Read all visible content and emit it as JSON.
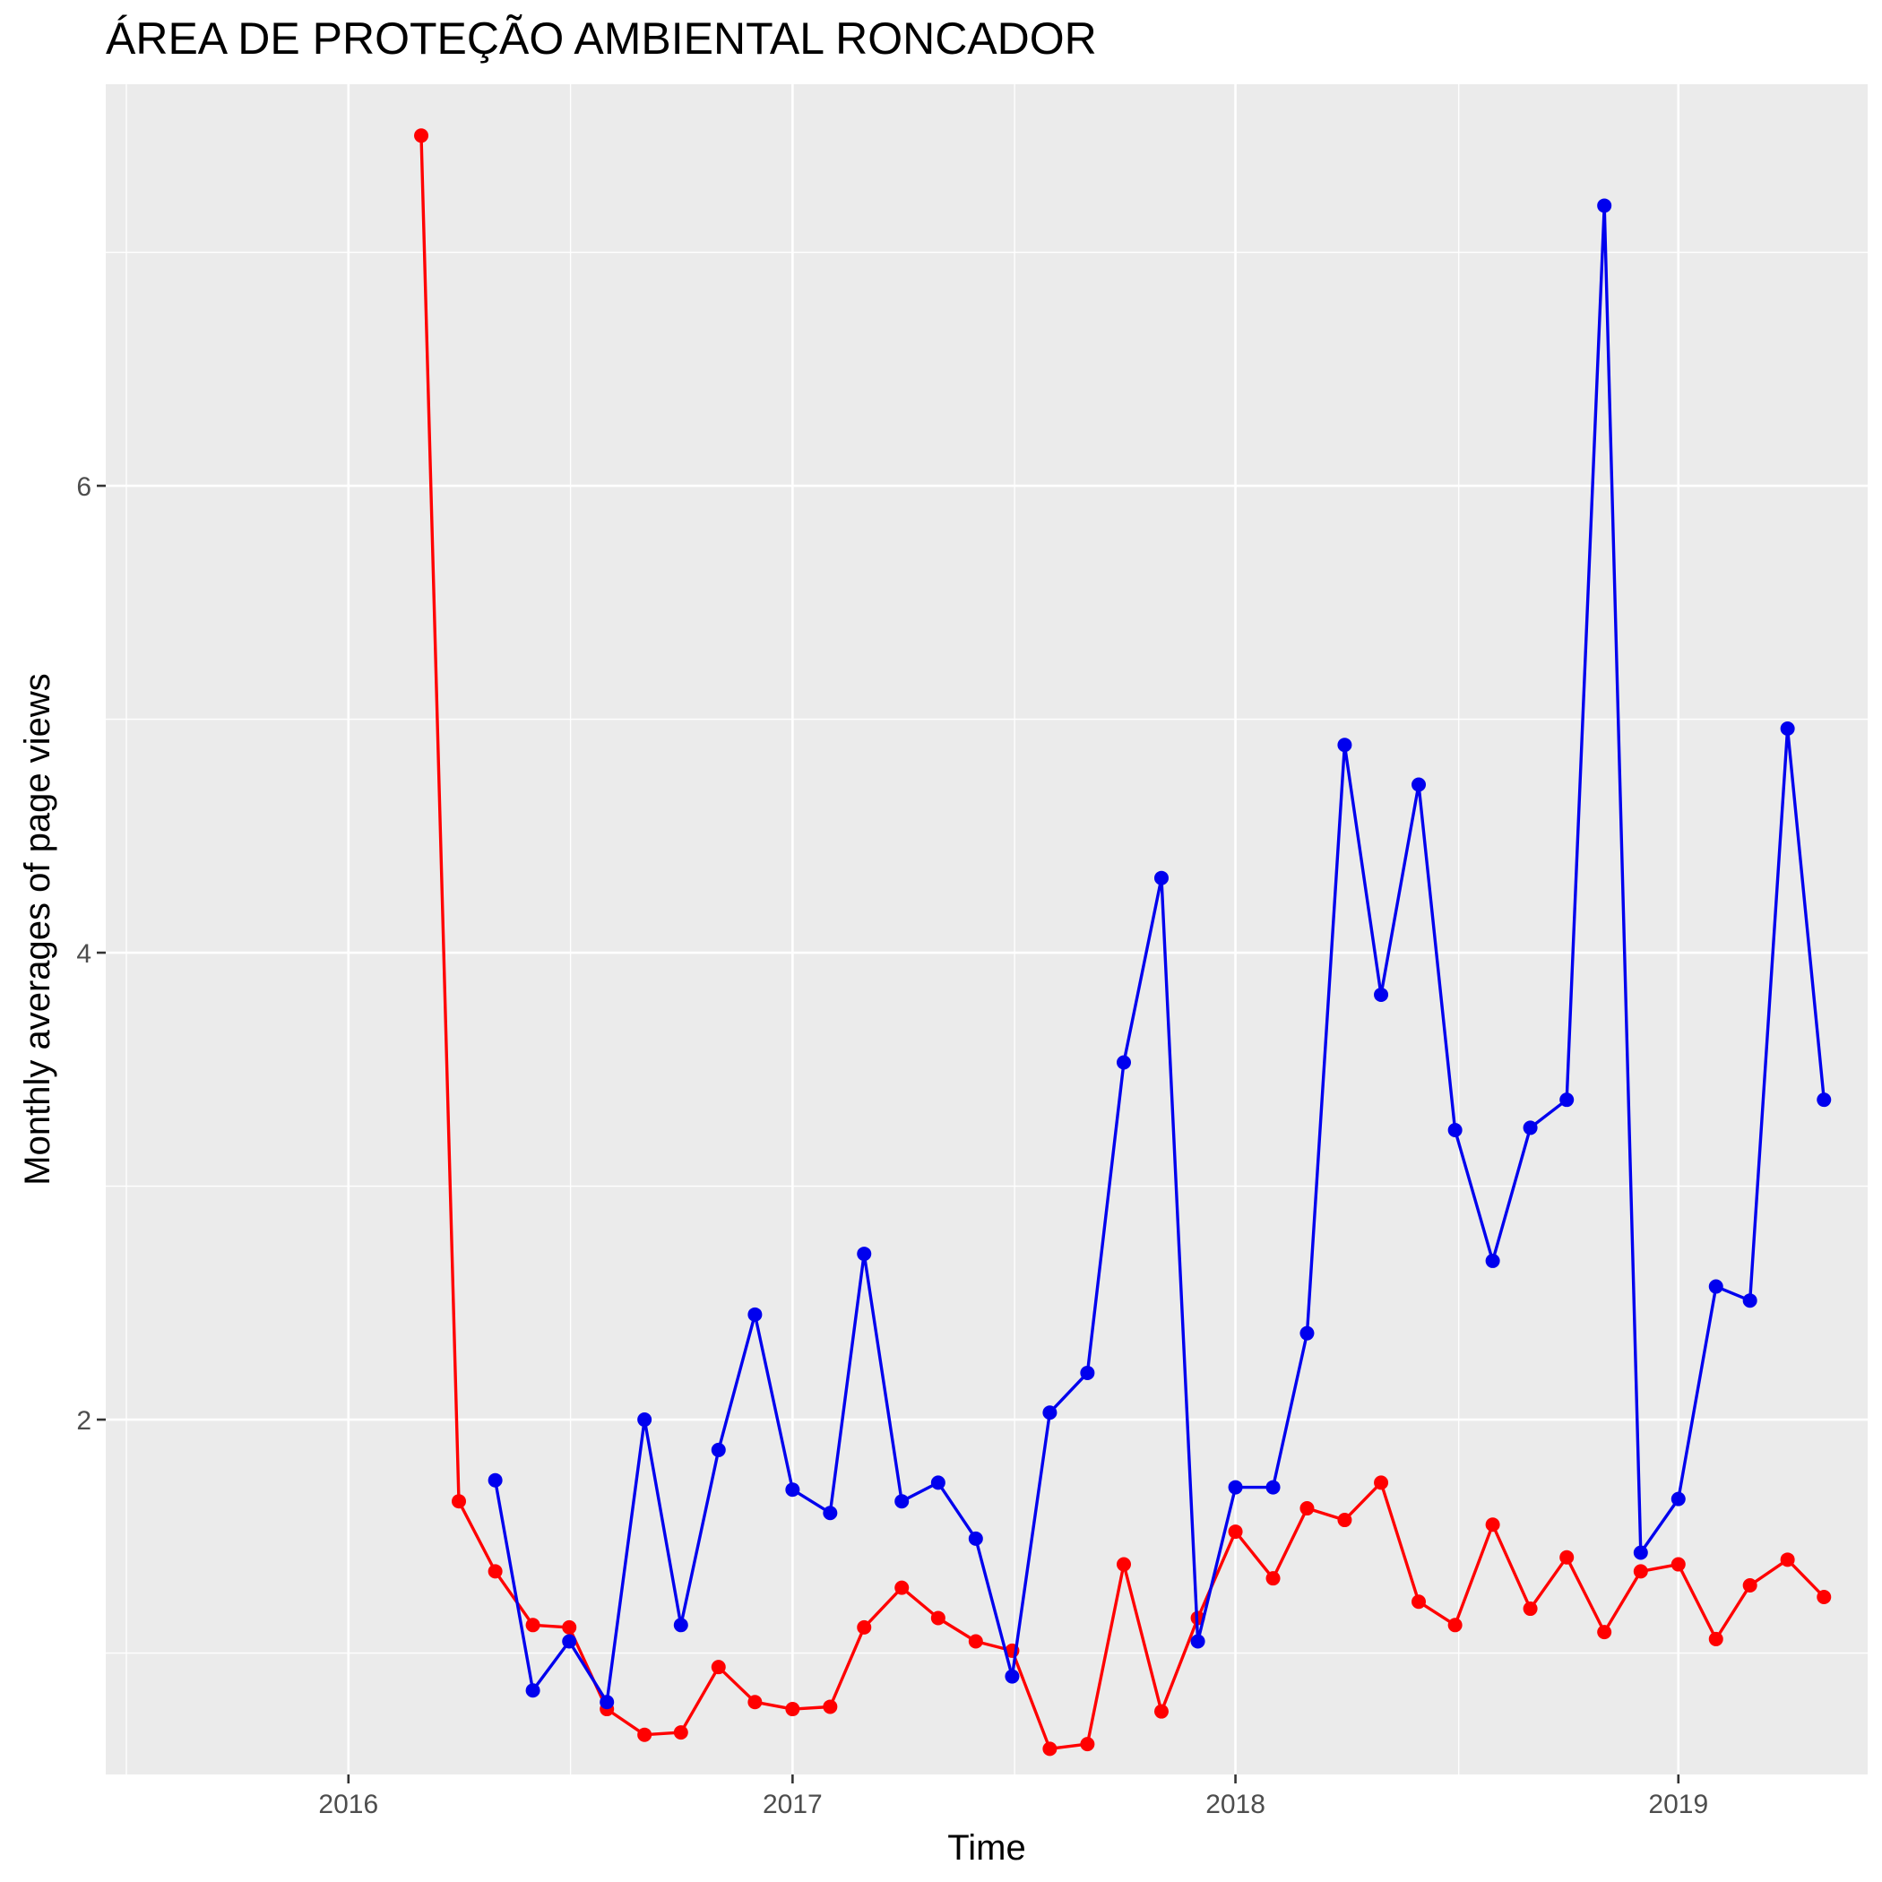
{
  "chart_data": {
    "type": "line",
    "title": "ÁREA DE PROTEÇÃO AMBIENTAL RONCADOR",
    "xlabel": "Time",
    "ylabel": "Monthly averages of page views",
    "x_ticks": [
      "2016",
      "2017",
      "2018",
      "2019"
    ],
    "y_ticks": [
      "2",
      "4",
      "6"
    ],
    "xlim": [
      "2015-06-15",
      "2019-06-06"
    ],
    "ylim": [
      0.48,
      7.72
    ],
    "grid": true,
    "legend": "none",
    "series": [
      {
        "color": "#FF0000",
        "points": [
          [
            "2016-03",
            7.5
          ],
          [
            "2016-04",
            1.65
          ],
          [
            "2016-05",
            1.35
          ],
          [
            "2016-06",
            1.12
          ],
          [
            "2016-07",
            1.11
          ],
          [
            "2016-08",
            0.76
          ],
          [
            "2016-09",
            0.65
          ],
          [
            "2016-10",
            0.66
          ],
          [
            "2016-11",
            0.94
          ],
          [
            "2016-12",
            0.79
          ],
          [
            "2017-01",
            0.76
          ],
          [
            "2017-02",
            0.77
          ],
          [
            "2017-03",
            1.11
          ],
          [
            "2017-04",
            1.28
          ],
          [
            "2017-05",
            1.15
          ],
          [
            "2017-06",
            1.05
          ],
          [
            "2017-07",
            1.01
          ],
          [
            "2017-08",
            0.59
          ],
          [
            "2017-09",
            0.61
          ],
          [
            "2017-10",
            1.38
          ],
          [
            "2017-11",
            0.75
          ],
          [
            "2017-12",
            1.15
          ],
          [
            "2018-01",
            1.52
          ],
          [
            "2018-02",
            1.32
          ],
          [
            "2018-03",
            1.62
          ],
          [
            "2018-04",
            1.57
          ],
          [
            "2018-05",
            1.73
          ],
          [
            "2018-06",
            1.22
          ],
          [
            "2018-07",
            1.12
          ],
          [
            "2018-08",
            1.55
          ],
          [
            "2018-09",
            1.19
          ],
          [
            "2018-10",
            1.41
          ],
          [
            "2018-11",
            1.09
          ],
          [
            "2018-12",
            1.35
          ],
          [
            "2019-01",
            1.38
          ],
          [
            "2019-02",
            1.06
          ],
          [
            "2019-03",
            1.29
          ],
          [
            "2019-04",
            1.4
          ],
          [
            "2019-05",
            1.24
          ]
        ]
      },
      {
        "color": "#0000EE",
        "points": [
          [
            "2016-05",
            1.74
          ],
          [
            "2016-06",
            0.84
          ],
          [
            "2016-07",
            1.05
          ],
          [
            "2016-08",
            0.79
          ],
          [
            "2016-09",
            2.0
          ],
          [
            "2016-10",
            1.12
          ],
          [
            "2016-11",
            1.87
          ],
          [
            "2016-12",
            2.45
          ],
          [
            "2017-01",
            1.7
          ],
          [
            "2017-02",
            1.6
          ],
          [
            "2017-03",
            2.71
          ],
          [
            "2017-04",
            1.65
          ],
          [
            "2017-05",
            1.73
          ],
          [
            "2017-06",
            1.49
          ],
          [
            "2017-07",
            0.9
          ],
          [
            "2017-08",
            2.03
          ],
          [
            "2017-09",
            2.2
          ],
          [
            "2017-10",
            3.53
          ],
          [
            "2017-11",
            4.32
          ],
          [
            "2017-12",
            1.05
          ],
          [
            "2018-01",
            1.71
          ],
          [
            "2018-02",
            1.71
          ],
          [
            "2018-03",
            2.37
          ],
          [
            "2018-04",
            4.89
          ],
          [
            "2018-05",
            3.82
          ],
          [
            "2018-06",
            4.72
          ],
          [
            "2018-07",
            3.24
          ],
          [
            "2018-08",
            2.68
          ],
          [
            "2018-09",
            3.25
          ],
          [
            "2018-10",
            3.37
          ],
          [
            "2018-11",
            7.2
          ],
          [
            "2018-12",
            1.43
          ],
          [
            "2019-01",
            1.66
          ],
          [
            "2019-02",
            2.57
          ],
          [
            "2019-03",
            2.51
          ],
          [
            "2019-04",
            4.96
          ],
          [
            "2019-05",
            3.37
          ]
        ]
      }
    ]
  }
}
